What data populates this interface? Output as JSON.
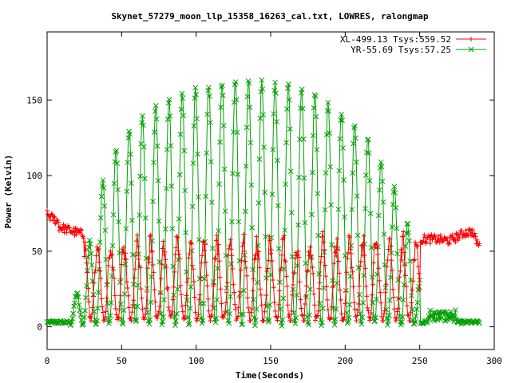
{
  "chart_data": {
    "type": "line",
    "title": "Skynet_57279_moon_llp_15358_16263_cal.txt, LOWRES, ralongmap",
    "xlabel": "Time(Seconds)",
    "ylabel": "Power (Kelvin)",
    "xlim": [
      0,
      300
    ],
    "ylim": [
      -15,
      195
    ],
    "xticks": [
      0,
      50,
      100,
      150,
      200,
      250,
      300
    ],
    "yticks": [
      0,
      50,
      100,
      150
    ],
    "grid": false,
    "legend_position": "top-right",
    "sample_interval": 0.5,
    "series": [
      {
        "name": "XL-499.13 Tsys:559.52",
        "color": "#ff0000",
        "marker": "+",
        "segments": [
          {
            "x": [
              0,
              8
            ],
            "y": [
              74,
              69
            ]
          },
          {
            "x": [
              8,
              14
            ],
            "y": [
              66,
              66
            ]
          },
          {
            "x": [
              14,
              20
            ],
            "y": [
              66,
              60
            ]
          },
          {
            "x": [
              20,
              25
            ],
            "y": [
              60,
              58
            ]
          },
          {
            "x": [
              25,
              30
            ],
            "y": [
              62,
              60
            ]
          }
        ],
        "lo": 4,
        "hi": 62,
        "modulation_start": 25,
        "modulation_end": 250,
        "period": 8.9,
        "tail": [
          {
            "x": 250,
            "y": 58
          },
          {
            "x": 260,
            "y": 58
          },
          {
            "x": 270,
            "y": 57
          },
          {
            "x": 280,
            "y": 62
          },
          {
            "x": 285,
            "y": 63
          },
          {
            "x": 290,
            "y": 53
          }
        ]
      },
      {
        "name": "YR-55.69 Tsys:57.25",
        "color": "#00a000",
        "marker": "x",
        "lo": 2,
        "envelope": [
          {
            "x": 0,
            "y": 4
          },
          {
            "x": 15,
            "y": 6
          },
          {
            "x": 25,
            "y": 40
          },
          {
            "x": 38,
            "y": 100
          },
          {
            "x": 50,
            "y": 125
          },
          {
            "x": 65,
            "y": 140
          },
          {
            "x": 80,
            "y": 150
          },
          {
            "x": 100,
            "y": 158
          },
          {
            "x": 120,
            "y": 162
          },
          {
            "x": 140,
            "y": 163
          },
          {
            "x": 160,
            "y": 160
          },
          {
            "x": 180,
            "y": 155
          },
          {
            "x": 200,
            "y": 140
          },
          {
            "x": 215,
            "y": 125
          },
          {
            "x": 230,
            "y": 100
          },
          {
            "x": 245,
            "y": 60
          },
          {
            "x": 255,
            "y": 8
          },
          {
            "x": 290,
            "y": 4
          }
        ],
        "modulation_start": 15,
        "modulation_end": 250,
        "period": 8.9
      }
    ]
  }
}
